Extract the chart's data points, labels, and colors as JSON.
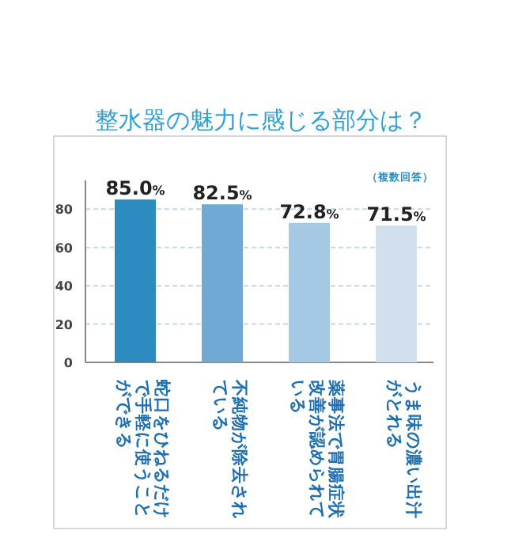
{
  "chart_data": {
    "type": "bar",
    "title": "整水器の魅力に感じる部分は？",
    "annotations": [
      "（複数回答）"
    ],
    "categories": [
      "蛇口をひねるだけで手軽に使うことができる",
      "不純物が除去されている",
      "薬事法で胃腸症状改善が認められている",
      "うま味の濃い出汁がとれる"
    ],
    "values": [
      85.0,
      82.5,
      72.8,
      71.5
    ],
    "colors": [
      "#2e8bc0",
      "#6fa9d4",
      "#a5c8e4",
      "#d2e0ee"
    ],
    "value_labels": [
      "85.0%",
      "82.5%",
      "72.8%",
      "71.5%"
    ],
    "ylim": [
      0,
      95
    ],
    "yticks": [
      0,
      20,
      40,
      60,
      80
    ],
    "grid": "y"
  }
}
